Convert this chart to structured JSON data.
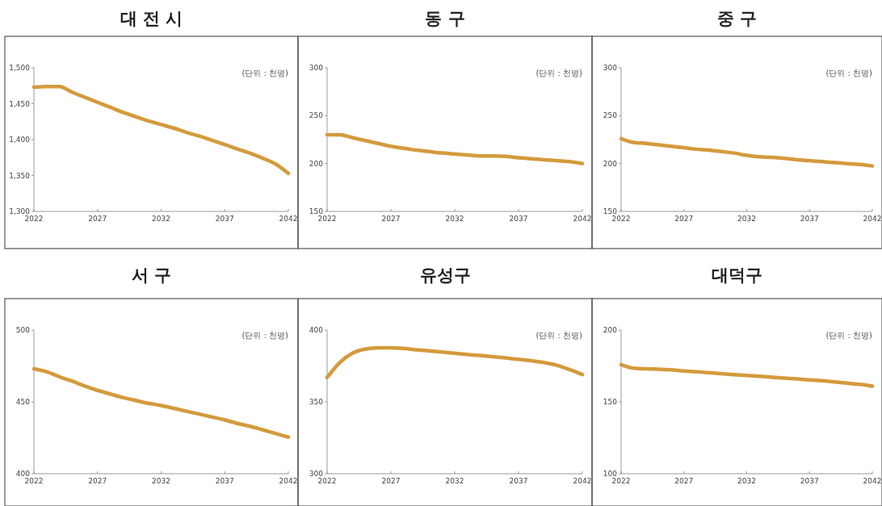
{
  "chart_data": [
    {
      "type": "line",
      "title": "대 전 시",
      "annotations": [
        "(단위 : 천명)"
      ],
      "x": [
        2022,
        2023,
        2024,
        2025,
        2026,
        2027,
        2028,
        2029,
        2030,
        2031,
        2032,
        2033,
        2034,
        2035,
        2036,
        2037,
        2038,
        2039,
        2040,
        2041,
        2042
      ],
      "xlim": [
        2022,
        2042
      ],
      "xticks": [
        2022,
        2027,
        2032,
        2037,
        2042
      ],
      "ylim": [
        1300,
        1500
      ],
      "yticks": [
        {
          "value": 1300,
          "label": "1,300"
        },
        {
          "value": 1350,
          "label": "1,350"
        },
        {
          "value": 1400,
          "label": "1,400"
        },
        {
          "value": 1450,
          "label": "1,450"
        },
        {
          "value": 1500,
          "label": "1,500"
        }
      ],
      "grid": false,
      "series": [
        {
          "color": "#d49a3c",
          "values": [
            1473,
            1474,
            1474,
            1466,
            1459,
            1452,
            1445,
            1438,
            1432,
            1426,
            1421,
            1416,
            1410,
            1405,
            1399,
            1393,
            1387,
            1381,
            1374,
            1366,
            1353
          ]
        }
      ]
    },
    {
      "type": "line",
      "title": "동 구",
      "annotations": [
        "(단위 : 천명)"
      ],
      "x": [
        2022,
        2023,
        2024,
        2025,
        2026,
        2027,
        2028,
        2029,
        2030,
        2031,
        2032,
        2033,
        2034,
        2035,
        2036,
        2037,
        2038,
        2039,
        2040,
        2041,
        2042
      ],
      "xlim": [
        2022,
        2042
      ],
      "xticks": [
        2022,
        2027,
        2032,
        2037,
        2042
      ],
      "ylim": [
        150,
        300
      ],
      "yticks": [
        150,
        200,
        250,
        300
      ],
      "grid": false,
      "series": [
        {
          "color": "#d49a3c",
          "values": [
            230,
            230,
            227,
            224,
            221,
            218,
            216,
            214,
            212.5,
            211,
            210,
            209,
            208,
            208,
            207.5,
            206,
            205,
            204,
            203,
            202,
            200
          ]
        }
      ]
    },
    {
      "type": "line",
      "title": "중 구",
      "annotations": [
        "(단위 : 천명)"
      ],
      "x": [
        2022,
        2023,
        2024,
        2025,
        2026,
        2027,
        2028,
        2029,
        2030,
        2031,
        2032,
        2033,
        2034,
        2035,
        2036,
        2037,
        2038,
        2039,
        2040,
        2041,
        2042
      ],
      "xlim": [
        2022,
        2042
      ],
      "xticks": [
        2022,
        2027,
        2032,
        2037,
        2042
      ],
      "ylim": [
        150,
        300
      ],
      "yticks": [
        150,
        200,
        250,
        300
      ],
      "grid": false,
      "series": [
        {
          "color": "#d49a3c",
          "values": [
            226,
            222,
            221,
            219.5,
            218,
            216.5,
            215,
            214,
            212.5,
            211,
            208.5,
            207,
            206.5,
            205.5,
            204,
            203,
            202,
            201,
            200,
            199,
            197.5
          ]
        }
      ]
    },
    {
      "type": "line",
      "title": "서 구",
      "annotations": [
        "(단위 : 천명)"
      ],
      "x": [
        2022,
        2023,
        2024,
        2025,
        2026,
        2027,
        2028,
        2029,
        2030,
        2031,
        2032,
        2033,
        2034,
        2035,
        2036,
        2037,
        2038,
        2039,
        2040,
        2041,
        2042
      ],
      "xlim": [
        2022,
        2042
      ],
      "xticks": [
        2022,
        2027,
        2032,
        2037,
        2042
      ],
      "ylim": [
        400,
        500
      ],
      "yticks": [
        400,
        450,
        500
      ],
      "grid": false,
      "series": [
        {
          "color": "#d49a3c",
          "values": [
            473,
            471,
            467.5,
            464.5,
            461,
            458,
            455.5,
            453,
            451,
            449,
            447.5,
            445.5,
            443.5,
            441.5,
            439.5,
            437.5,
            435,
            433,
            430.5,
            428,
            425.5
          ]
        }
      ]
    },
    {
      "type": "line",
      "title": "유성구",
      "annotations": [
        "(단위 : 천명)"
      ],
      "x": [
        2022,
        2023,
        2024,
        2025,
        2026,
        2027,
        2028,
        2029,
        2030,
        2031,
        2032,
        2033,
        2034,
        2035,
        2036,
        2037,
        2038,
        2039,
        2040,
        2041,
        2042
      ],
      "xlim": [
        2022,
        2042
      ],
      "xticks": [
        2022,
        2027,
        2032,
        2037,
        2042
      ],
      "ylim": [
        300,
        400
      ],
      "yticks": [
        300,
        350,
        400
      ],
      "grid": false,
      "series": [
        {
          "color": "#d49a3c",
          "values": [
            367,
            377.5,
            384,
            386.8,
            387.7,
            387.7,
            387.2,
            386.2,
            385.5,
            384.7,
            383.8,
            383,
            382.3,
            381.5,
            380.6,
            379.6,
            378.7,
            377.4,
            375.5,
            372.5,
            369
          ]
        }
      ]
    },
    {
      "type": "line",
      "title": "대덕구",
      "annotations": [
        "(단위 : 천명)"
      ],
      "x": [
        2022,
        2023,
        2024,
        2025,
        2026,
        2027,
        2028,
        2029,
        2030,
        2031,
        2032,
        2033,
        2034,
        2035,
        2036,
        2037,
        2038,
        2039,
        2040,
        2041,
        2042
      ],
      "xlim": [
        2022,
        2042
      ],
      "xticks": [
        2022,
        2027,
        2032,
        2037,
        2042
      ],
      "ylim": [
        100,
        200
      ],
      "yticks": [
        100,
        150,
        200
      ],
      "grid": false,
      "series": [
        {
          "color": "#d49a3c",
          "values": [
            175.9,
            173.4,
            173,
            172.8,
            172.3,
            171.5,
            171,
            170.3,
            169.6,
            169,
            168.4,
            167.8,
            167.2,
            166.6,
            166,
            165.3,
            164.7,
            163.9,
            163,
            162.2,
            161
          ]
        }
      ]
    }
  ]
}
